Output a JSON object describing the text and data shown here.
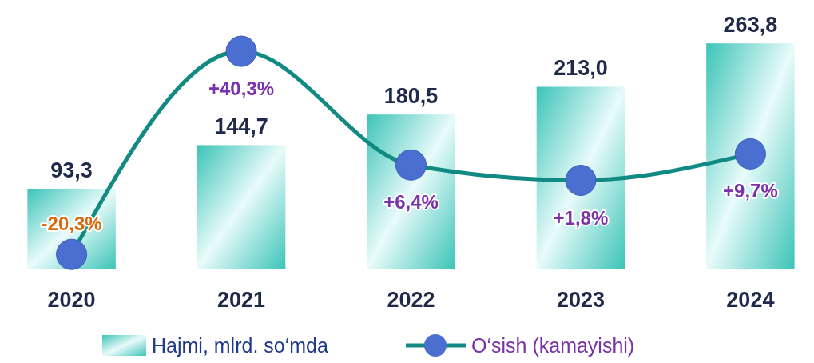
{
  "chart_data": {
    "type": "bar",
    "categories": [
      "2020",
      "2021",
      "2022",
      "2023",
      "2024"
    ],
    "series": [
      {
        "name": "Hajmi, mlrd. so‘mda",
        "color": "#3cc4b8",
        "values": [
          93.3,
          144.7,
          180.5,
          213.0,
          263.8
        ],
        "value_labels": [
          "93,3",
          "144,7",
          "180,5",
          "213,0",
          "263,8"
        ]
      },
      {
        "name": "O‘sish (kamayishi)",
        "type": "line",
        "axis": "y2",
        "color": "#128a84",
        "marker": "circle",
        "values": [
          -20.3,
          40.3,
          6.4,
          1.8,
          9.7
        ],
        "value_labels": [
          "-20,3%",
          "+40,3%",
          "+6,4%",
          "+1,8%",
          "+9,7%"
        ]
      }
    ],
    "tick_labels": "x",
    "legend": "bottom"
  }
}
